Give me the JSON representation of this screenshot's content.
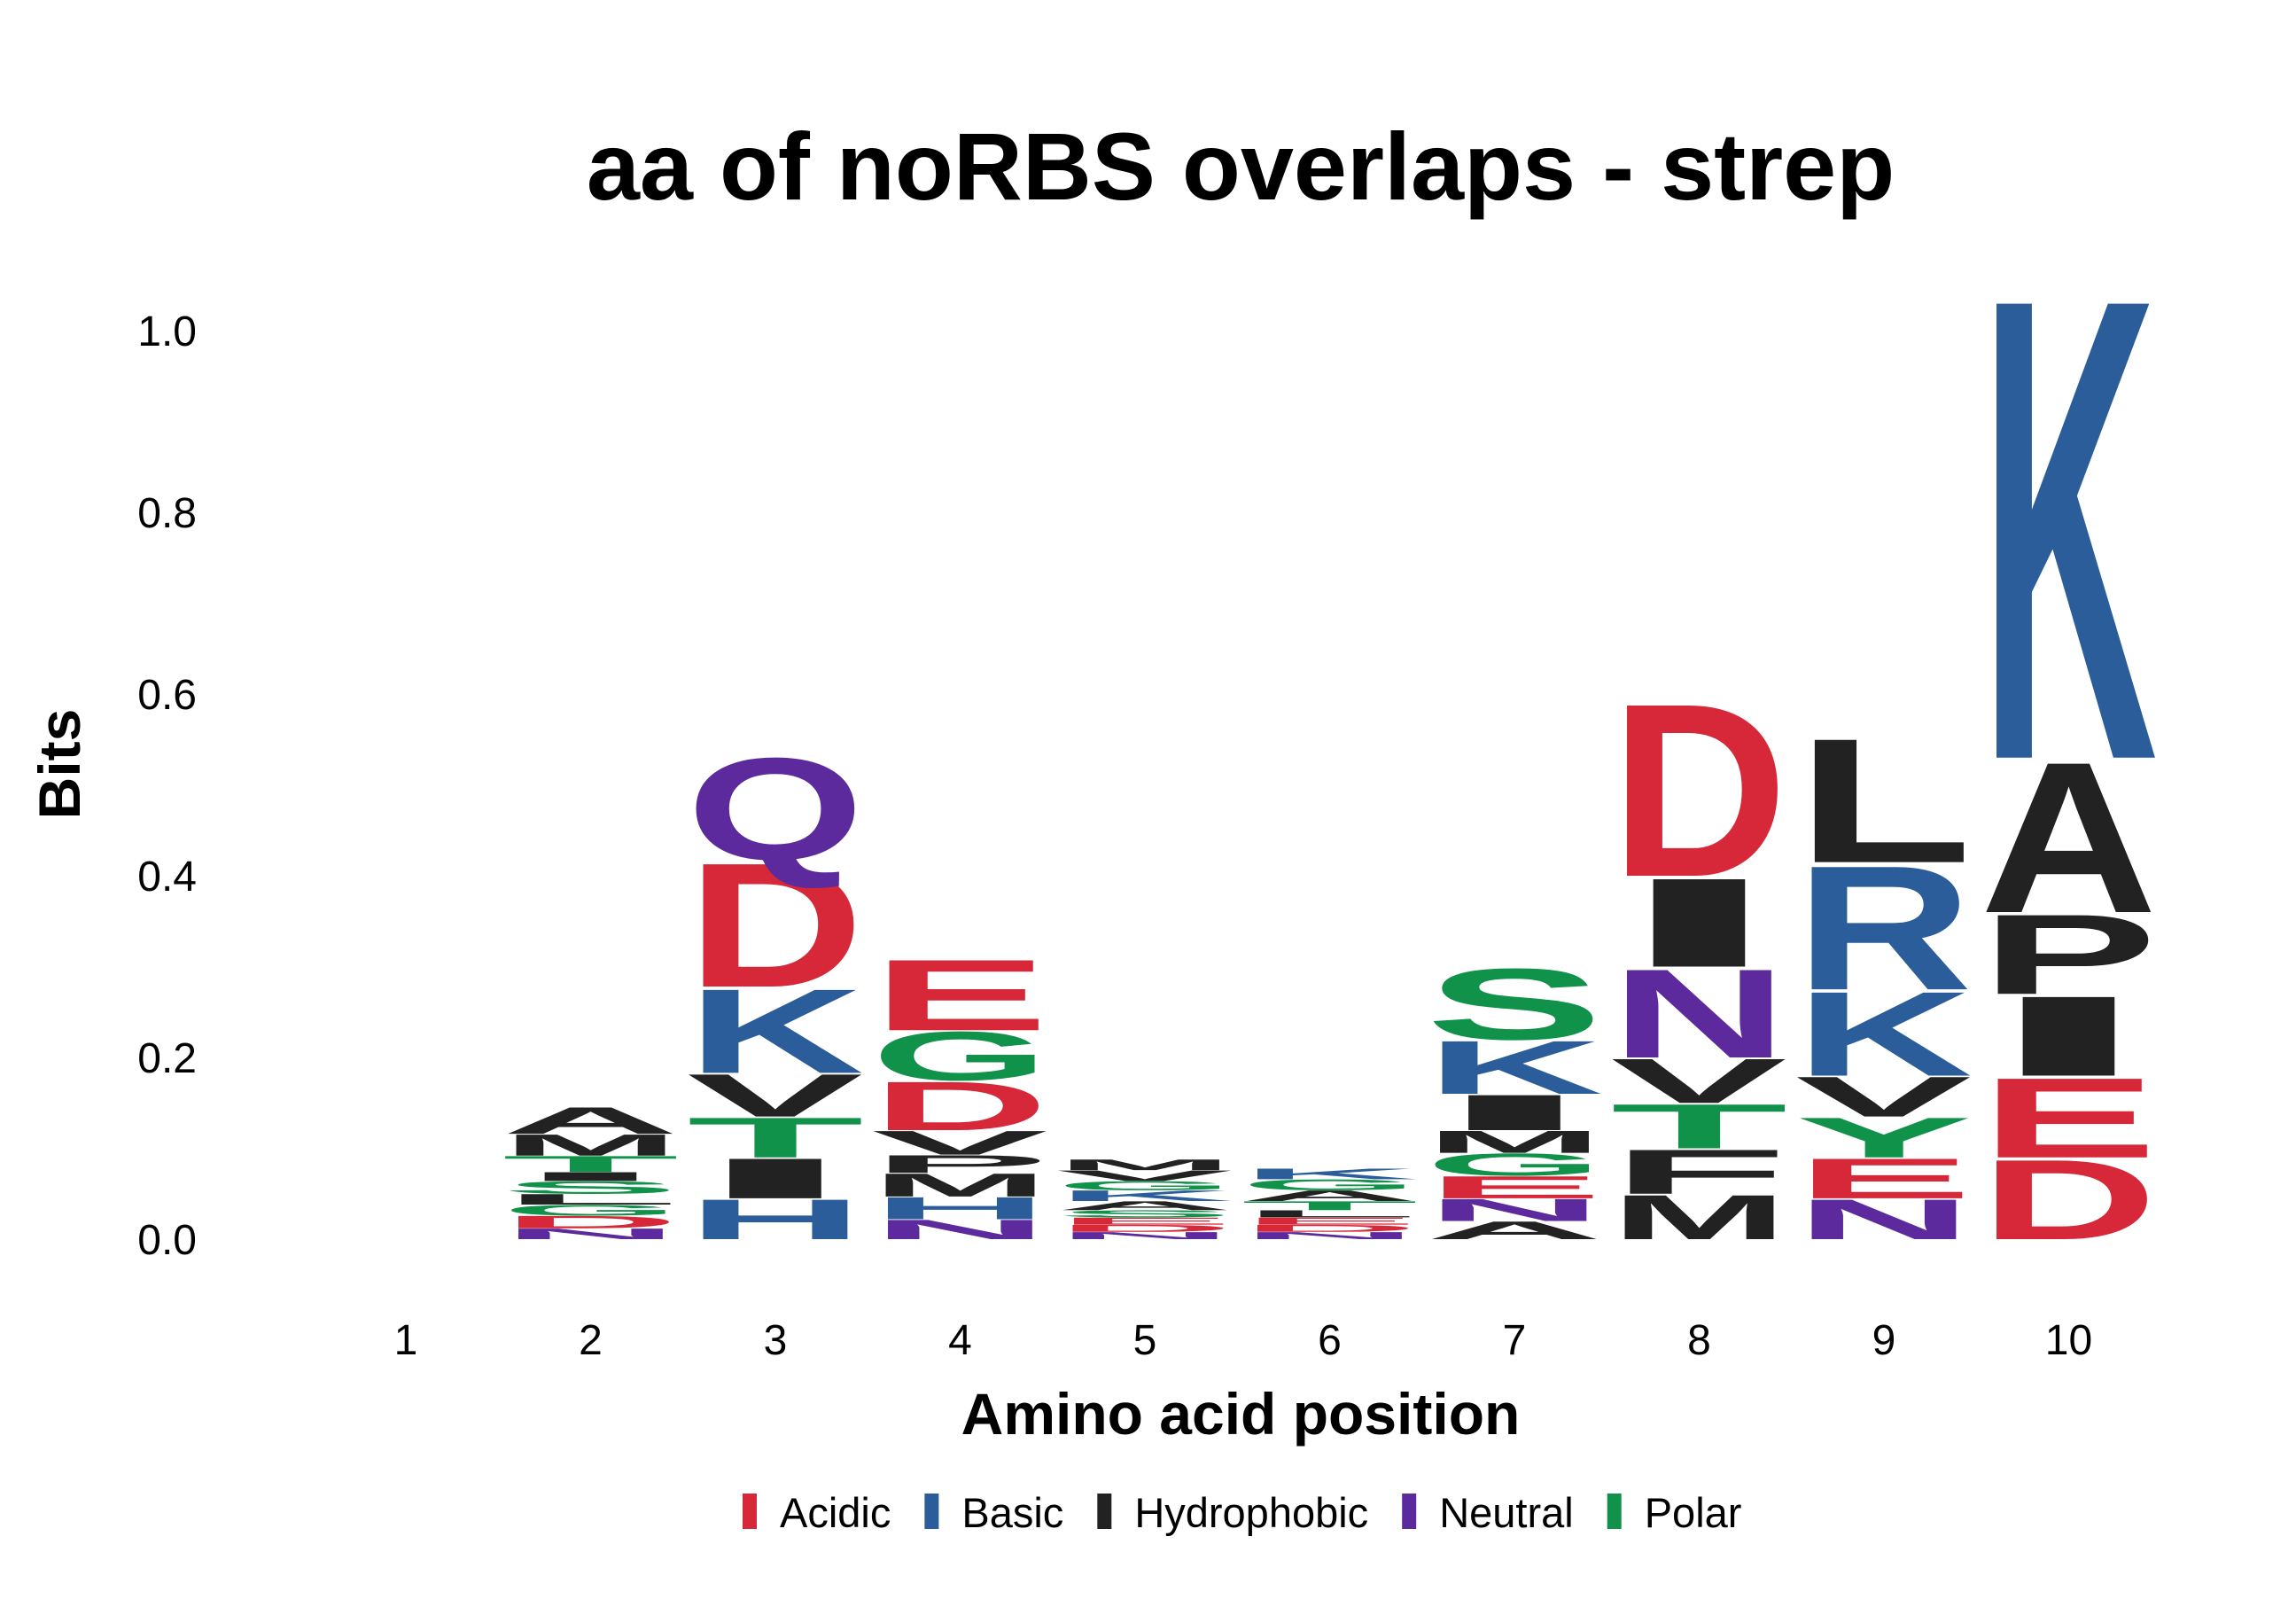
{
  "chart_data": {
    "type": "sequence-logo",
    "title": "aa of noRBS overlaps - strep",
    "xlabel": "Amino acid position",
    "ylabel": "Bits",
    "ylim": [
      0,
      1.06
    ],
    "yticks": [
      "0.0",
      "0.2",
      "0.4",
      "0.6",
      "0.8",
      "1.0"
    ],
    "ytick_values": [
      0,
      0.2,
      0.4,
      0.6,
      0.8,
      1.0
    ],
    "positions": [
      "1",
      "2",
      "3",
      "4",
      "5",
      "6",
      "7",
      "8",
      "9",
      "10"
    ],
    "legend": [
      {
        "name": "Acidic",
        "color": "#d62839"
      },
      {
        "name": "Basic",
        "color": "#2a5d9a"
      },
      {
        "name": "Hydrophobic",
        "color": "#222222"
      },
      {
        "name": "Neutral",
        "color": "#5c2a9d"
      },
      {
        "name": "Polar",
        "color": "#11924a"
      }
    ],
    "stacks": [
      [],
      [
        {
          "letter": "N",
          "class": "Neutral",
          "height": 0.012
        },
        {
          "letter": "D",
          "class": "Acidic",
          "height": 0.014
        },
        {
          "letter": "G",
          "class": "Polar",
          "height": 0.012
        },
        {
          "letter": "L",
          "class": "Hydrophobic",
          "height": 0.012
        },
        {
          "letter": "S",
          "class": "Polar",
          "height": 0.014
        },
        {
          "letter": "I",
          "class": "Hydrophobic",
          "height": 0.01
        },
        {
          "letter": "T",
          "class": "Polar",
          "height": 0.018
        },
        {
          "letter": "M",
          "class": "Hydrophobic",
          "height": 0.024
        },
        {
          "letter": "A",
          "class": "Hydrophobic",
          "height": 0.03
        }
      ],
      [
        {
          "letter": "H",
          "class": "Basic",
          "height": 0.045
        },
        {
          "letter": "I",
          "class": "Hydrophobic",
          "height": 0.045
        },
        {
          "letter": "T",
          "class": "Polar",
          "height": 0.045
        },
        {
          "letter": "V",
          "class": "Hydrophobic",
          "height": 0.048
        },
        {
          "letter": "K",
          "class": "Basic",
          "height": 0.095
        },
        {
          "letter": "D",
          "class": "Acidic",
          "height": 0.14
        },
        {
          "letter": "Q",
          "class": "Neutral",
          "height": 0.115
        }
      ],
      [
        {
          "letter": "N",
          "class": "Neutral",
          "height": 0.022
        },
        {
          "letter": "H",
          "class": "Basic",
          "height": 0.025
        },
        {
          "letter": "M",
          "class": "Hydrophobic",
          "height": 0.026
        },
        {
          "letter": "P",
          "class": "Hydrophobic",
          "height": 0.02
        },
        {
          "letter": "V",
          "class": "Hydrophobic",
          "height": 0.027
        },
        {
          "letter": "D",
          "class": "Acidic",
          "height": 0.055
        },
        {
          "letter": "G",
          "class": "Polar",
          "height": 0.055
        },
        {
          "letter": "E",
          "class": "Acidic",
          "height": 0.08
        }
      ],
      [
        {
          "letter": "N",
          "class": "Neutral",
          "height": 0.008
        },
        {
          "letter": "D",
          "class": "Acidic",
          "height": 0.008
        },
        {
          "letter": "E",
          "class": "Acidic",
          "height": 0.008
        },
        {
          "letter": "S",
          "class": "Polar",
          "height": 0.008
        },
        {
          "letter": "A",
          "class": "Hydrophobic",
          "height": 0.01
        },
        {
          "letter": "K",
          "class": "Basic",
          "height": 0.012
        },
        {
          "letter": "G",
          "class": "Polar",
          "height": 0.01
        },
        {
          "letter": "V",
          "class": "Hydrophobic",
          "height": 0.012
        },
        {
          "letter": "M",
          "class": "Hydrophobic",
          "height": 0.012
        }
      ],
      [
        {
          "letter": "N",
          "class": "Neutral",
          "height": 0.008
        },
        {
          "letter": "D",
          "class": "Acidic",
          "height": 0.008
        },
        {
          "letter": "E",
          "class": "Acidic",
          "height": 0.008
        },
        {
          "letter": "L",
          "class": "Hydrophobic",
          "height": 0.008
        },
        {
          "letter": "T",
          "class": "Polar",
          "height": 0.01
        },
        {
          "letter": "A",
          "class": "Hydrophobic",
          "height": 0.012
        },
        {
          "letter": "G",
          "class": "Polar",
          "height": 0.012
        },
        {
          "letter": "K",
          "class": "Basic",
          "height": 0.012
        }
      ],
      [
        {
          "letter": "A",
          "class": "Hydrophobic",
          "height": 0.02
        },
        {
          "letter": "N",
          "class": "Neutral",
          "height": 0.025
        },
        {
          "letter": "E",
          "class": "Acidic",
          "height": 0.025
        },
        {
          "letter": "G",
          "class": "Polar",
          "height": 0.025
        },
        {
          "letter": "M",
          "class": "Hydrophobic",
          "height": 0.025
        },
        {
          "letter": "I",
          "class": "Hydrophobic",
          "height": 0.04
        },
        {
          "letter": "K",
          "class": "Basic",
          "height": 0.06
        },
        {
          "letter": "S",
          "class": "Polar",
          "height": 0.08
        }
      ],
      [
        {
          "letter": "M",
          "class": "Hydrophobic",
          "height": 0.05
        },
        {
          "letter": "F",
          "class": "Hydrophobic",
          "height": 0.05
        },
        {
          "letter": "T",
          "class": "Polar",
          "height": 0.05
        },
        {
          "letter": "V",
          "class": "Hydrophobic",
          "height": 0.05
        },
        {
          "letter": "N",
          "class": "Neutral",
          "height": 0.1
        },
        {
          "letter": "I",
          "class": "Hydrophobic",
          "height": 0.1
        },
        {
          "letter": "D",
          "class": "Acidic",
          "height": 0.195
        }
      ],
      [
        {
          "letter": "N",
          "class": "Neutral",
          "height": 0.045
        },
        {
          "letter": "E",
          "class": "Acidic",
          "height": 0.045
        },
        {
          "letter": "Y",
          "class": "Polar",
          "height": 0.045
        },
        {
          "letter": "V",
          "class": "Hydrophobic",
          "height": 0.045
        },
        {
          "letter": "K",
          "class": "Basic",
          "height": 0.095
        },
        {
          "letter": "R",
          "class": "Basic",
          "height": 0.14
        },
        {
          "letter": "L",
          "class": "Hydrophobic",
          "height": 0.14
        }
      ],
      [
        {
          "letter": "D",
          "class": "Acidic",
          "height": 0.09
        },
        {
          "letter": "E",
          "class": "Acidic",
          "height": 0.09
        },
        {
          "letter": "I",
          "class": "Hydrophobic",
          "height": 0.09
        },
        {
          "letter": "P",
          "class": "Hydrophobic",
          "height": 0.09
        },
        {
          "letter": "A",
          "class": "Hydrophobic",
          "height": 0.17
        },
        {
          "letter": "K",
          "class": "Basic",
          "height": 0.52
        }
      ]
    ]
  }
}
